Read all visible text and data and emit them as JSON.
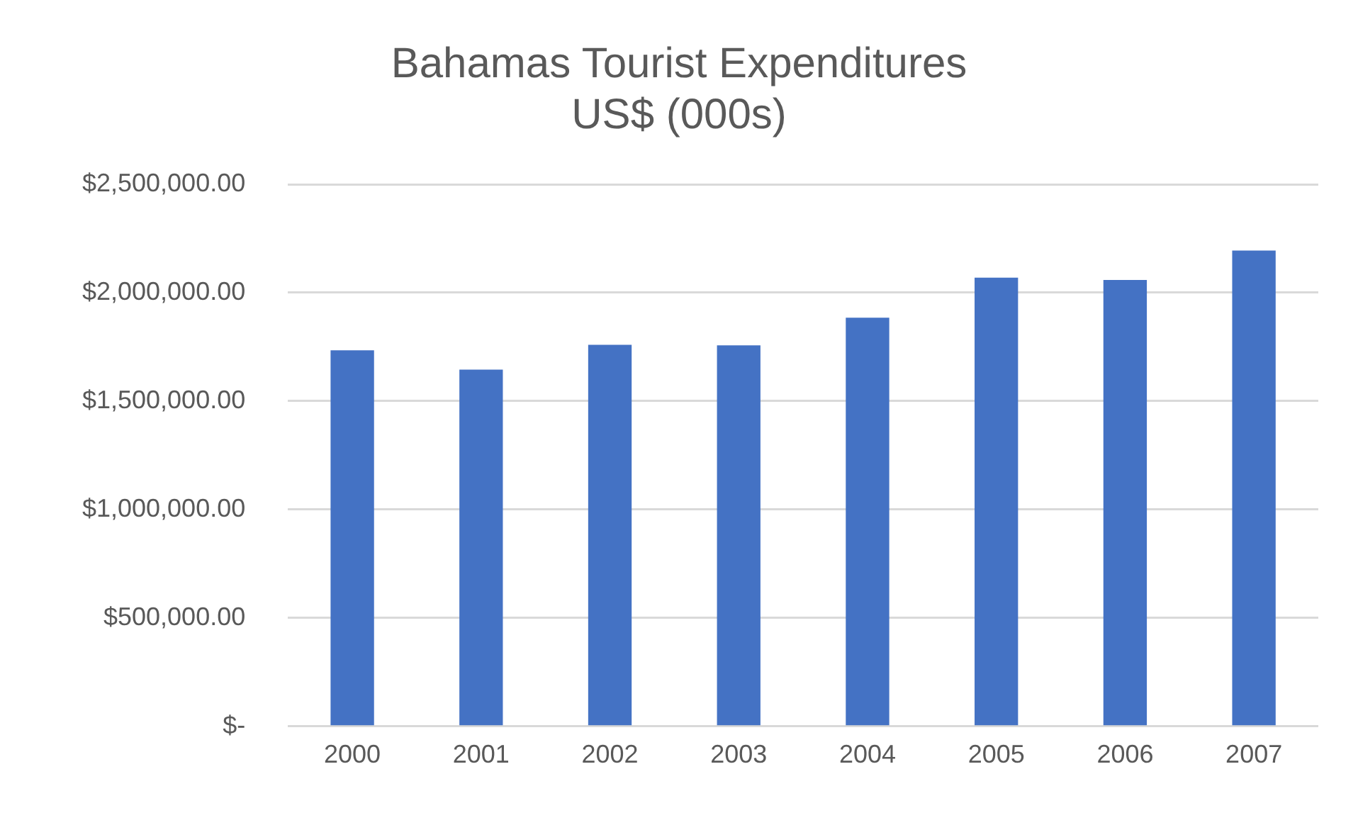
{
  "chart_data": {
    "type": "bar",
    "title": [
      "Bahamas Tourist Expenditures",
      "US$ (000s)"
    ],
    "categories": [
      "2000",
      "2001",
      "2002",
      "2003",
      "2004",
      "2005",
      "2006",
      "2007"
    ],
    "values": [
      1734000,
      1645000,
      1760000,
      1757000,
      1885000,
      2069000,
      2059000,
      2194000
    ],
    "color": "#4472c4",
    "ylim": [
      0,
      2500000
    ],
    "yticks": [
      {
        "value": 0,
        "label": "$-"
      },
      {
        "value": 500000,
        "label": "$500,000.00"
      },
      {
        "value": 1000000,
        "label": "$1,000,000.00"
      },
      {
        "value": 1500000,
        "label": "$1,500,000.00"
      },
      {
        "value": 2000000,
        "label": "$2,000,000.00"
      },
      {
        "value": 2500000,
        "label": "$2,500,000.00"
      }
    ],
    "grid": "y",
    "legend": false
  }
}
